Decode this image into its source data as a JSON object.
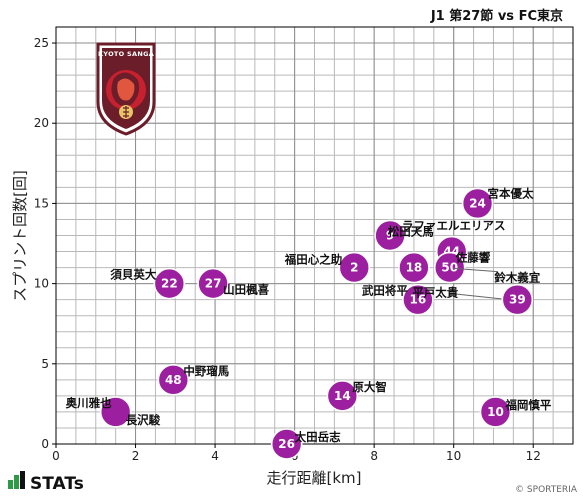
{
  "header": {
    "title": "J1 第27節 vs FC東京"
  },
  "footer": {
    "brand": "STATs",
    "copyright": "© SPORTERIA"
  },
  "logo": {
    "text": "KYOTO SANGA",
    "emblem_color": "#6b1d2a",
    "accent_color": "#c7202e"
  },
  "colors": {
    "point": "#9c1fa0",
    "grid": "#b9b9b9"
  },
  "chart_data": {
    "type": "scatter",
    "title": "J1 第27節 vs FC東京",
    "xlabel": "走行距離[km]",
    "ylabel": "スプリント回数[回]",
    "xlim": [
      0,
      13
    ],
    "ylim": [
      0,
      26
    ],
    "xticks": [
      "0",
      "2",
      "4",
      "6",
      "8",
      "10",
      "12"
    ],
    "yticks": [
      "0",
      "5",
      "10",
      "15",
      "20",
      "25"
    ],
    "grid": true,
    "points": [
      {
        "number": "24",
        "name": "宮本優太",
        "x": 10.6,
        "y": 15
      },
      {
        "number": "9",
        "name": "ラファエルエリアス",
        "x": 8.4,
        "y": 13
      },
      {
        "number": "44",
        "name": "松田天馬",
        "x": 9.95,
        "y": 12
      },
      {
        "number": "18",
        "name": "",
        "x": 9.0,
        "y": 11
      },
      {
        "number": "50",
        "name": "佐藤響",
        "x": 9.9,
        "y": 11
      },
      {
        "number": "2",
        "name": "福田心之助",
        "x": 7.5,
        "y": 11
      },
      {
        "number": "22",
        "name": "須貝英大",
        "x": 2.85,
        "y": 10
      },
      {
        "number": "27",
        "name": "山田楓喜",
        "x": 3.95,
        "y": 10
      },
      {
        "number": "16",
        "name": "武田将平",
        "x": 9.1,
        "y": 9
      },
      {
        "number": "39",
        "name": "鈴木義宜",
        "x": 11.6,
        "y": 9
      },
      {
        "number": "",
        "name": "平戸太貴",
        "x": 11.6,
        "y": 9
      },
      {
        "number": "48",
        "name": "中野瑠馬",
        "x": 2.95,
        "y": 4
      },
      {
        "number": "14",
        "name": "原大智",
        "x": 7.2,
        "y": 3
      },
      {
        "number": "10",
        "name": "福岡慎平",
        "x": 11.05,
        "y": 2
      },
      {
        "number": "",
        "name": "奥川雅也",
        "x": 1.4,
        "y": 2
      },
      {
        "number": "",
        "name": "長沢駿",
        "x": 1.5,
        "y": 2
      },
      {
        "number": "26",
        "name": "太田岳志",
        "x": 5.8,
        "y": 0
      }
    ]
  }
}
